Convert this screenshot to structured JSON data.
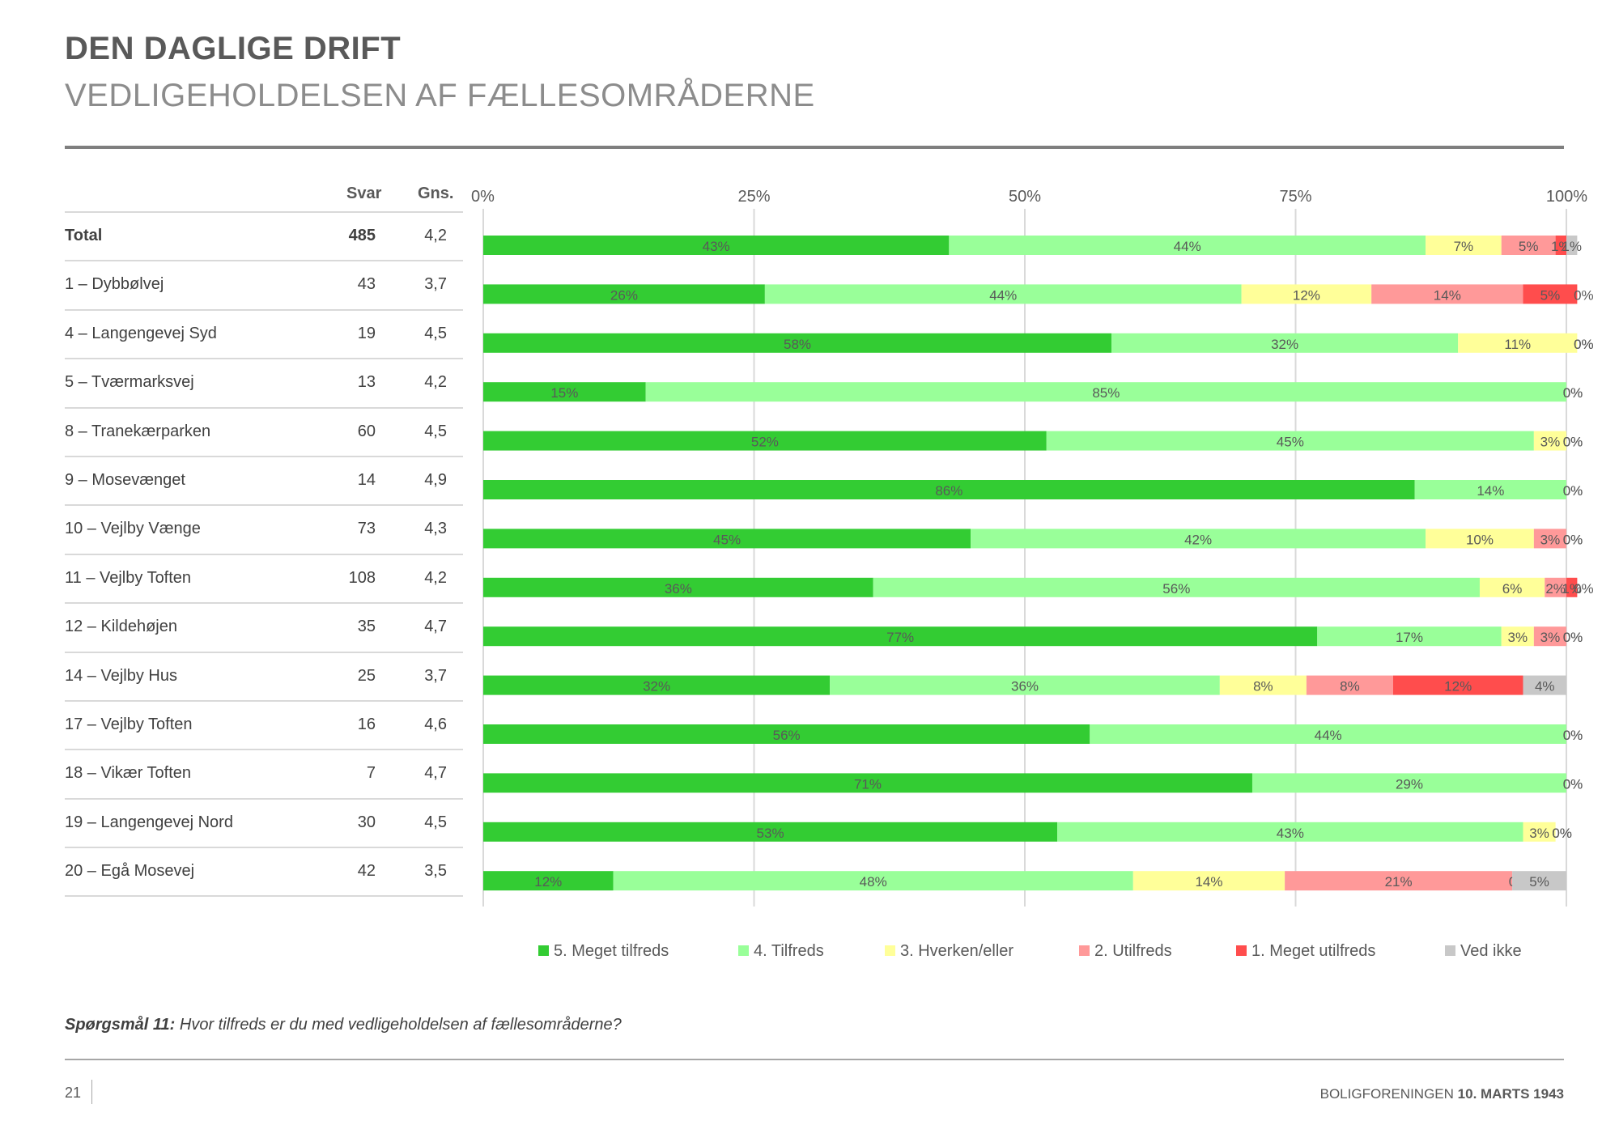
{
  "header": {
    "title": "DEN DAGLIGE DRIFT",
    "subtitle": "VEDLIGEHOLDELSEN AF FÆLLESOMRÅDERNE"
  },
  "table": {
    "col_svar": "Svar",
    "col_gns": "Gns.",
    "rows": [
      {
        "label": "Total",
        "svar": "485",
        "gns": "4,2"
      },
      {
        "label": "1 – Dybbølvej",
        "svar": "43",
        "gns": "3,7"
      },
      {
        "label": "4 – Langengevej Syd",
        "svar": "19",
        "gns": "4,5"
      },
      {
        "label": "5 – Tværmarksvej",
        "svar": "13",
        "gns": "4,2"
      },
      {
        "label": "8 – Tranekærparken",
        "svar": "60",
        "gns": "4,5"
      },
      {
        "label": "9 – Mosevænget",
        "svar": "14",
        "gns": "4,9"
      },
      {
        "label": "10 – Vejlby Vænge",
        "svar": "73",
        "gns": "4,3"
      },
      {
        "label": "11 – Vejlby Toften",
        "svar": "108",
        "gns": "4,2"
      },
      {
        "label": "12 – Kildehøjen",
        "svar": "35",
        "gns": "4,7"
      },
      {
        "label": "14 – Vejlby Hus",
        "svar": "25",
        "gns": "3,7"
      },
      {
        "label": "17 – Vejlby Toften",
        "svar": "16",
        "gns": "4,6"
      },
      {
        "label": "18 – Vikær Toften",
        "svar": "7",
        "gns": "4,7"
      },
      {
        "label": "19 – Langengevej Nord",
        "svar": "30",
        "gns": "4,5"
      },
      {
        "label": "20 – Egå Mosevej",
        "svar": "42",
        "gns": "3,5"
      }
    ]
  },
  "chart_data": {
    "type": "bar",
    "orientation": "horizontal",
    "stacked": true,
    "xlim": [
      0,
      100
    ],
    "xticks": [
      "0%",
      "25%",
      "50%",
      "75%",
      "100%"
    ],
    "grid": true,
    "legend_position": "bottom",
    "categories": [
      "Total",
      "1 – Dybbølvej",
      "4 – Langengevej Syd",
      "5 – Tværmarksvej",
      "8 – Tranekærparken",
      "9 – Mosevænget",
      "10 – Vejlby Vænge",
      "11 – Vejlby Toften",
      "12 – Kildehøjen",
      "14 – Vejlby Hus",
      "17 – Vejlby Toften",
      "18 – Vikær Toften",
      "19 – Langengevej Nord",
      "20 – Egå Mosevej"
    ],
    "series": [
      {
        "name": "5. Meget tilfreds",
        "color": "#33cc33",
        "values": [
          43,
          26,
          58,
          15,
          52,
          86,
          45,
          36,
          77,
          32,
          56,
          71,
          53,
          12
        ],
        "labels": [
          "43%",
          "26%",
          "58%",
          "15%",
          "52%",
          "86%",
          "45%",
          "36%",
          "77%",
          "32%",
          "56%",
          "71%",
          "53%",
          "12%"
        ]
      },
      {
        "name": "4. Tilfreds",
        "color": "#99ff99",
        "values": [
          44,
          44,
          32,
          85,
          45,
          14,
          42,
          56,
          17,
          36,
          44,
          29,
          43,
          48
        ],
        "labels": [
          "44%",
          "44%",
          "32%",
          "85%",
          "45%",
          "14%",
          "42%",
          "56%",
          "17%",
          "36%",
          "44%",
          "29%",
          "43%",
          "48%"
        ]
      },
      {
        "name": "3. Hverken/eller",
        "color": "#ffff99",
        "values": [
          7,
          12,
          11,
          0,
          3,
          0,
          10,
          6,
          3,
          8,
          0,
          0,
          3,
          14
        ],
        "labels": [
          "7%",
          "12%",
          "11%",
          "",
          "3%",
          "",
          "10%",
          "6%",
          "3%",
          "8%",
          "",
          "",
          "3%",
          "14%"
        ]
      },
      {
        "name": "2. Utilfreds",
        "color": "#ff9999",
        "values": [
          5,
          14,
          0,
          0,
          0,
          0,
          3,
          2,
          3,
          8,
          0,
          0,
          0,
          21
        ],
        "labels": [
          "5%",
          "14%",
          "",
          "",
          "",
          "",
          "3%",
          "2%",
          "3%",
          "8%",
          "",
          "",
          "",
          "21%"
        ]
      },
      {
        "name": "1. Meget utilfreds",
        "color": "#ff4d4d",
        "values": [
          1,
          5,
          0,
          0,
          0,
          0,
          0,
          1,
          0,
          12,
          0,
          0,
          0,
          0
        ],
        "labels": [
          "1%",
          "5%",
          "0%",
          "0%",
          "0%",
          "0%",
          "0%",
          "1%",
          "0%",
          "12%",
          "0%",
          "0%",
          "0%",
          "0%"
        ]
      },
      {
        "name": "Ved ikke",
        "color": "#c8c8c8",
        "values": [
          1,
          0,
          0,
          0,
          0,
          0,
          0,
          0,
          0,
          4,
          0,
          0,
          0,
          5
        ],
        "labels": [
          "1%",
          "0%",
          "0%",
          "0%",
          "0%",
          "0%",
          "0%",
          "0%",
          "0%",
          "4%",
          "0%",
          "0%",
          "0%",
          "5%"
        ]
      }
    ]
  },
  "question": {
    "label": "Spørgsmål 11:",
    "text": " Hvor tilfreds er du med vedligeholdelsen af fællesområderne?"
  },
  "footer": {
    "page_number": "21",
    "org": "BOLIGFORENINGEN ",
    "date": "10. MARTS 1943"
  }
}
